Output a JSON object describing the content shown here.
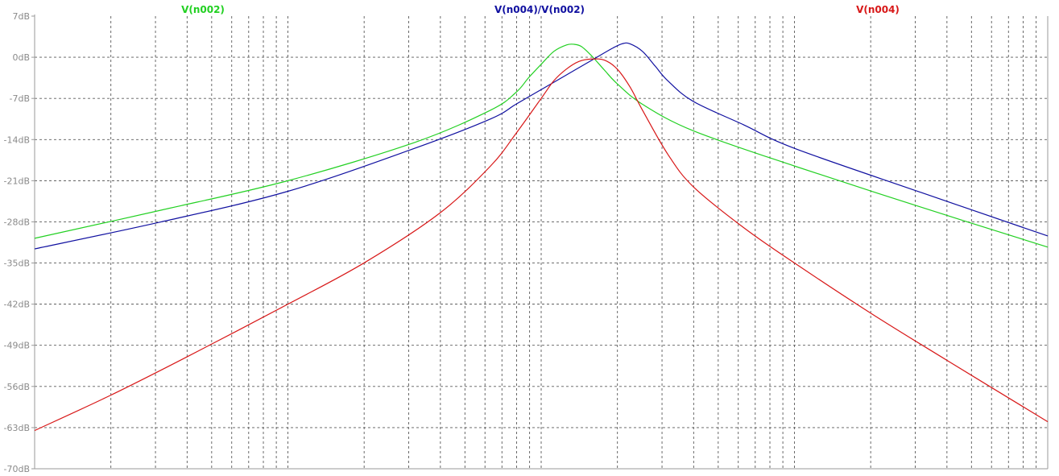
{
  "chart_data": {
    "type": "line",
    "title": "",
    "xlabel": "",
    "ylabel": "",
    "x_scale": "log",
    "x_range_decades": 4,
    "ylim": [
      -70,
      7
    ],
    "y_ticks": [
      "7dB",
      "0dB",
      "-7dB",
      "-14dB",
      "-21dB",
      "-28dB",
      "-35dB",
      "-42dB",
      "-49dB",
      "-56dB",
      "-63dB",
      "-70dB"
    ],
    "grid": true,
    "legend_placement": "top",
    "series": [
      {
        "name": "V(n002)",
        "color": "#22d022",
        "points": [
          [
            0,
            -30.8
          ],
          [
            0.5,
            -26.0
          ],
          [
            1.0,
            -21.0
          ],
          [
            1.5,
            -14.5
          ],
          [
            1.8,
            -9.0
          ],
          [
            1.9,
            -6.0
          ],
          [
            1.95,
            -3.5
          ],
          [
            2.0,
            -1.2
          ],
          [
            2.05,
            1.0
          ],
          [
            2.1,
            2.1
          ],
          [
            2.13,
            2.2
          ],
          [
            2.16,
            1.8
          ],
          [
            2.2,
            0.2
          ],
          [
            2.25,
            -2.2
          ],
          [
            2.3,
            -4.5
          ],
          [
            2.4,
            -8.0
          ],
          [
            2.6,
            -12.5
          ],
          [
            3.0,
            -18.5
          ],
          [
            3.5,
            -25.5
          ],
          [
            4.0,
            -32.3
          ]
        ]
      },
      {
        "name": "V(n004)/V(n002)",
        "color": "#1010a0",
        "points": [
          [
            0,
            -32.6
          ],
          [
            0.5,
            -28.0
          ],
          [
            1.0,
            -22.8
          ],
          [
            1.5,
            -15.5
          ],
          [
            1.8,
            -10.5
          ],
          [
            1.9,
            -8.0
          ],
          [
            2.0,
            -5.5
          ],
          [
            2.1,
            -3.0
          ],
          [
            2.2,
            -0.5
          ],
          [
            2.28,
            1.5
          ],
          [
            2.32,
            2.3
          ],
          [
            2.35,
            2.3
          ],
          [
            2.4,
            1.0
          ],
          [
            2.45,
            -1.5
          ],
          [
            2.5,
            -4.0
          ],
          [
            2.6,
            -7.5
          ],
          [
            2.8,
            -11.5
          ],
          [
            3.0,
            -15.5
          ],
          [
            3.5,
            -23.0
          ],
          [
            4.0,
            -30.4
          ]
        ]
      },
      {
        "name": "V(n004)",
        "color": "#d81818",
        "points": [
          [
            0,
            -63.5
          ],
          [
            0.3,
            -57.5
          ],
          [
            0.6,
            -51.0
          ],
          [
            1.0,
            -42.0
          ],
          [
            1.3,
            -35.0
          ],
          [
            1.6,
            -26.5
          ],
          [
            1.8,
            -18.5
          ],
          [
            1.9,
            -13.0
          ],
          [
            2.0,
            -7.0
          ],
          [
            2.05,
            -4.0
          ],
          [
            2.1,
            -2.0
          ],
          [
            2.15,
            -0.7
          ],
          [
            2.2,
            -0.3
          ],
          [
            2.25,
            -0.5
          ],
          [
            2.3,
            -2.0
          ],
          [
            2.35,
            -5.0
          ],
          [
            2.4,
            -9.0
          ],
          [
            2.5,
            -16.5
          ],
          [
            2.6,
            -22.0
          ],
          [
            2.8,
            -29.0
          ],
          [
            3.0,
            -35.0
          ],
          [
            3.3,
            -43.5
          ],
          [
            3.6,
            -51.5
          ],
          [
            4.0,
            -62.0
          ]
        ]
      }
    ]
  }
}
